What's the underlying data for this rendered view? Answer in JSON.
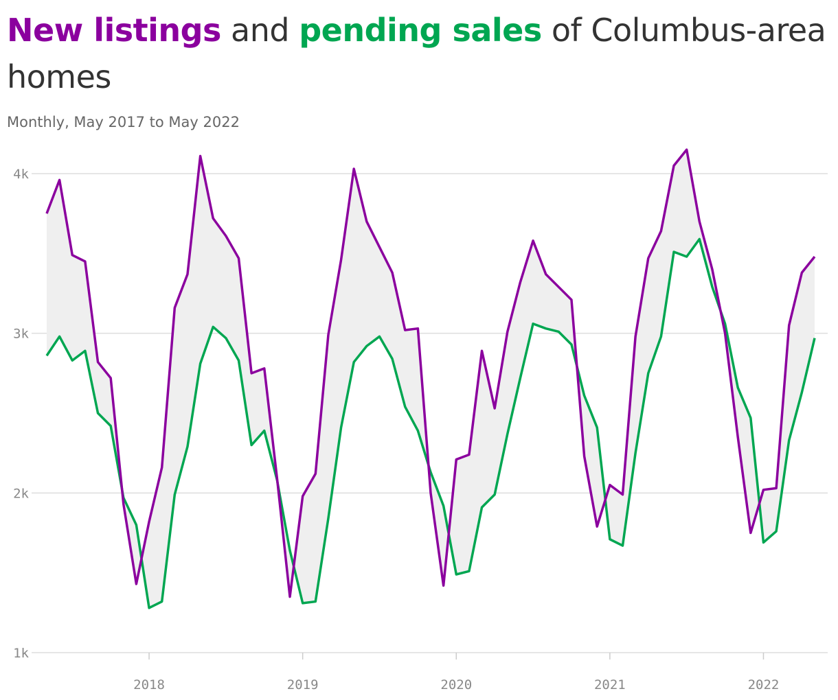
{
  "title": {
    "part1": "New listings",
    "part2": " and ",
    "part3": "pending sales",
    "part4": " of Columbus-area homes"
  },
  "subtitle": "Monthly, May 2017 to May 2022",
  "colors": {
    "new_listings": "#8b009e",
    "pending_sales": "#00a651",
    "band": "#efefef",
    "grid": "#dddddd",
    "text": "#333333"
  },
  "chart_data": {
    "type": "line",
    "x_start": "2017-05",
    "x_end": "2022-05",
    "ylim": [
      1000,
      4150
    ],
    "yticks": [
      1000,
      2000,
      3000,
      4000
    ],
    "ytick_labels": [
      "1k",
      "2k",
      "3k",
      "4k"
    ],
    "xticks": [
      "2018-01",
      "2019-01",
      "2020-01",
      "2021-01",
      "2022-01"
    ],
    "xtick_labels": [
      "2018",
      "2019",
      "2020",
      "2021",
      "2022"
    ],
    "grid": true,
    "fill_between": true,
    "series": [
      {
        "name": "New listings",
        "values": [
          3750,
          3960,
          3490,
          3450,
          2820,
          2720,
          1930,
          1430,
          1820,
          2160,
          3160,
          3370,
          4110,
          3720,
          3610,
          3470,
          2750,
          2780,
          2090,
          1350,
          1980,
          2120,
          2990,
          3460,
          4030,
          3700,
          3540,
          3380,
          3020,
          3030,
          2000,
          1420,
          2210,
          2240,
          2890,
          2530,
          3010,
          3320,
          3580,
          3370,
          3290,
          3210,
          2230,
          1790,
          2050,
          1990,
          2980,
          3470,
          3640,
          4050,
          4150,
          3700,
          3400,
          3000,
          2350,
          1750,
          2020,
          2030,
          3050,
          3380,
          3480
        ]
      },
      {
        "name": "Pending sales",
        "values": [
          2860,
          2980,
          2830,
          2890,
          2500,
          2420,
          1970,
          1800,
          1280,
          1320,
          1990,
          2290,
          2810,
          3040,
          2970,
          2830,
          2300,
          2390,
          2080,
          1640,
          1310,
          1320,
          1840,
          2410,
          2820,
          2920,
          2980,
          2840,
          2540,
          2390,
          2130,
          1920,
          1490,
          1510,
          1910,
          1990,
          2370,
          2720,
          3060,
          3030,
          3010,
          2930,
          2610,
          2410,
          1710,
          1670,
          2250,
          2750,
          2980,
          3510,
          3480,
          3590,
          3290,
          3060,
          2660,
          2470,
          1690,
          1760,
          2330,
          2630,
          2970
        ]
      }
    ]
  }
}
